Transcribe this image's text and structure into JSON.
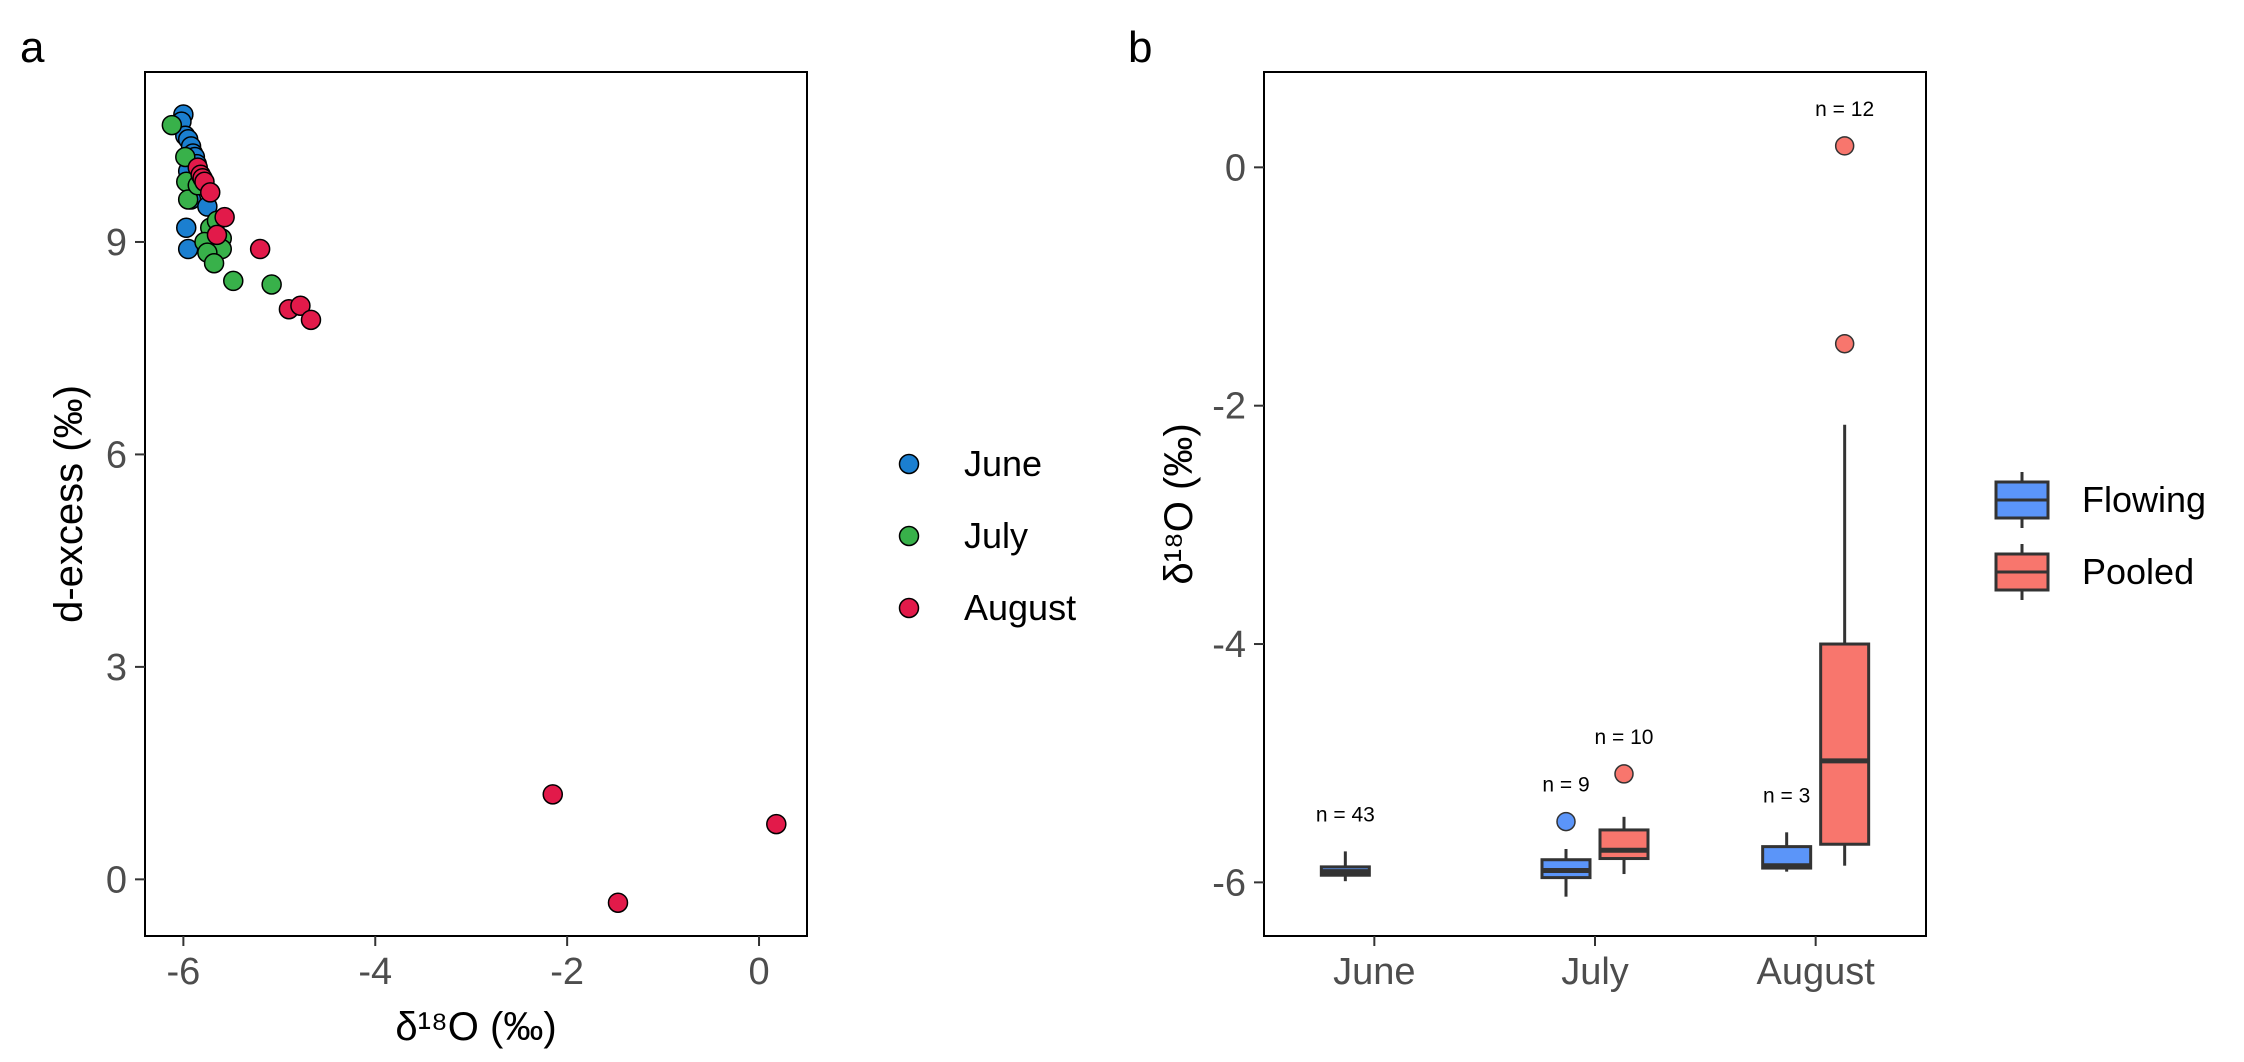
{
  "chart_data": [
    {
      "panel": "a",
      "type": "scatter",
      "xlabel": "δ¹⁸O (‰)",
      "ylabel": "d-excess (‰)",
      "xlim": [
        -6.4,
        0.5
      ],
      "ylim": [
        -0.8,
        11.4
      ],
      "xticks": [
        -6,
        -4,
        -2,
        0
      ],
      "yticks": [
        0,
        3,
        6,
        9
      ],
      "grid": false,
      "legend_position": "right",
      "series": [
        {
          "name": "June",
          "color": "#1b7fd0",
          "points": [
            [
              -6.0,
              10.8
            ],
            [
              -6.02,
              10.7
            ],
            [
              -5.98,
              10.5
            ],
            [
              -5.95,
              10.45
            ],
            [
              -5.92,
              10.35
            ],
            [
              -5.9,
              10.25
            ],
            [
              -5.88,
              10.2
            ],
            [
              -5.86,
              10.1
            ],
            [
              -5.95,
              10.0
            ],
            [
              -5.9,
              9.8
            ],
            [
              -5.92,
              9.6
            ],
            [
              -5.75,
              9.5
            ],
            [
              -5.97,
              9.2
            ],
            [
              -5.95,
              8.9
            ]
          ]
        },
        {
          "name": "July",
          "color": "#38b14a",
          "points": [
            [
              -6.12,
              10.65
            ],
            [
              -5.98,
              10.2
            ],
            [
              -5.97,
              9.85
            ],
            [
              -5.95,
              9.6
            ],
            [
              -5.85,
              9.8
            ],
            [
              -5.72,
              9.2
            ],
            [
              -5.65,
              9.3
            ],
            [
              -5.6,
              9.05
            ],
            [
              -5.78,
              9.0
            ],
            [
              -5.6,
              8.9
            ],
            [
              -5.75,
              8.85
            ],
            [
              -5.68,
              8.7
            ],
            [
              -5.48,
              8.45
            ],
            [
              -5.08,
              8.4
            ]
          ]
        },
        {
          "name": "August",
          "color": "#e21a4a",
          "points": [
            [
              -5.85,
              10.05
            ],
            [
              -5.82,
              9.95
            ],
            [
              -5.8,
              9.9
            ],
            [
              -5.78,
              9.85
            ],
            [
              -5.72,
              9.7
            ],
            [
              -5.57,
              9.35
            ],
            [
              -5.65,
              9.1
            ],
            [
              -5.2,
              8.9
            ],
            [
              -4.9,
              8.05
            ],
            [
              -4.78,
              8.1
            ],
            [
              -4.67,
              7.9
            ],
            [
              -2.15,
              1.2
            ],
            [
              -1.47,
              -0.33
            ],
            [
              0.18,
              0.78
            ]
          ]
        }
      ]
    },
    {
      "panel": "b",
      "type": "box",
      "xlabel": "",
      "ylabel": "δ¹⁸O (‰)",
      "categories": [
        "June",
        "July",
        "August"
      ],
      "ylim": [
        -6.45,
        0.8
      ],
      "yticks": [
        0,
        -2,
        -4,
        -6
      ],
      "grid": false,
      "legend_position": "right",
      "legend": [
        {
          "name": "Flowing",
          "color": "#5b95f9"
        },
        {
          "name": "Pooled",
          "color": "#f8766d"
        }
      ],
      "boxes": [
        {
          "category": "June",
          "group": "Flowing",
          "min": -5.99,
          "q1": -5.94,
          "median": -5.91,
          "q3": -5.87,
          "max": -5.74,
          "outliers": [],
          "n_label": "n = 43"
        },
        {
          "category": "July",
          "group": "Flowing",
          "min": -6.12,
          "q1": -5.96,
          "median": -5.9,
          "q3": -5.81,
          "max": -5.72,
          "outliers": [
            -5.49
          ],
          "n_label": "n = 9"
        },
        {
          "category": "July",
          "group": "Pooled",
          "min": -5.93,
          "q1": -5.8,
          "median": -5.73,
          "q3": -5.56,
          "max": -5.45,
          "outliers": [
            -5.09
          ],
          "n_label": "n = 10"
        },
        {
          "category": "August",
          "group": "Flowing",
          "min": -5.91,
          "q1": -5.88,
          "median": -5.86,
          "q3": -5.7,
          "max": -5.58,
          "outliers": [],
          "n_label": "n = 3"
        },
        {
          "category": "August",
          "group": "Pooled",
          "min": -5.86,
          "q1": -5.68,
          "median": -4.98,
          "q3": -4.0,
          "max": -2.16,
          "outliers": [
            -1.48,
            0.18
          ],
          "n_label": "n = 12"
        }
      ]
    }
  ]
}
